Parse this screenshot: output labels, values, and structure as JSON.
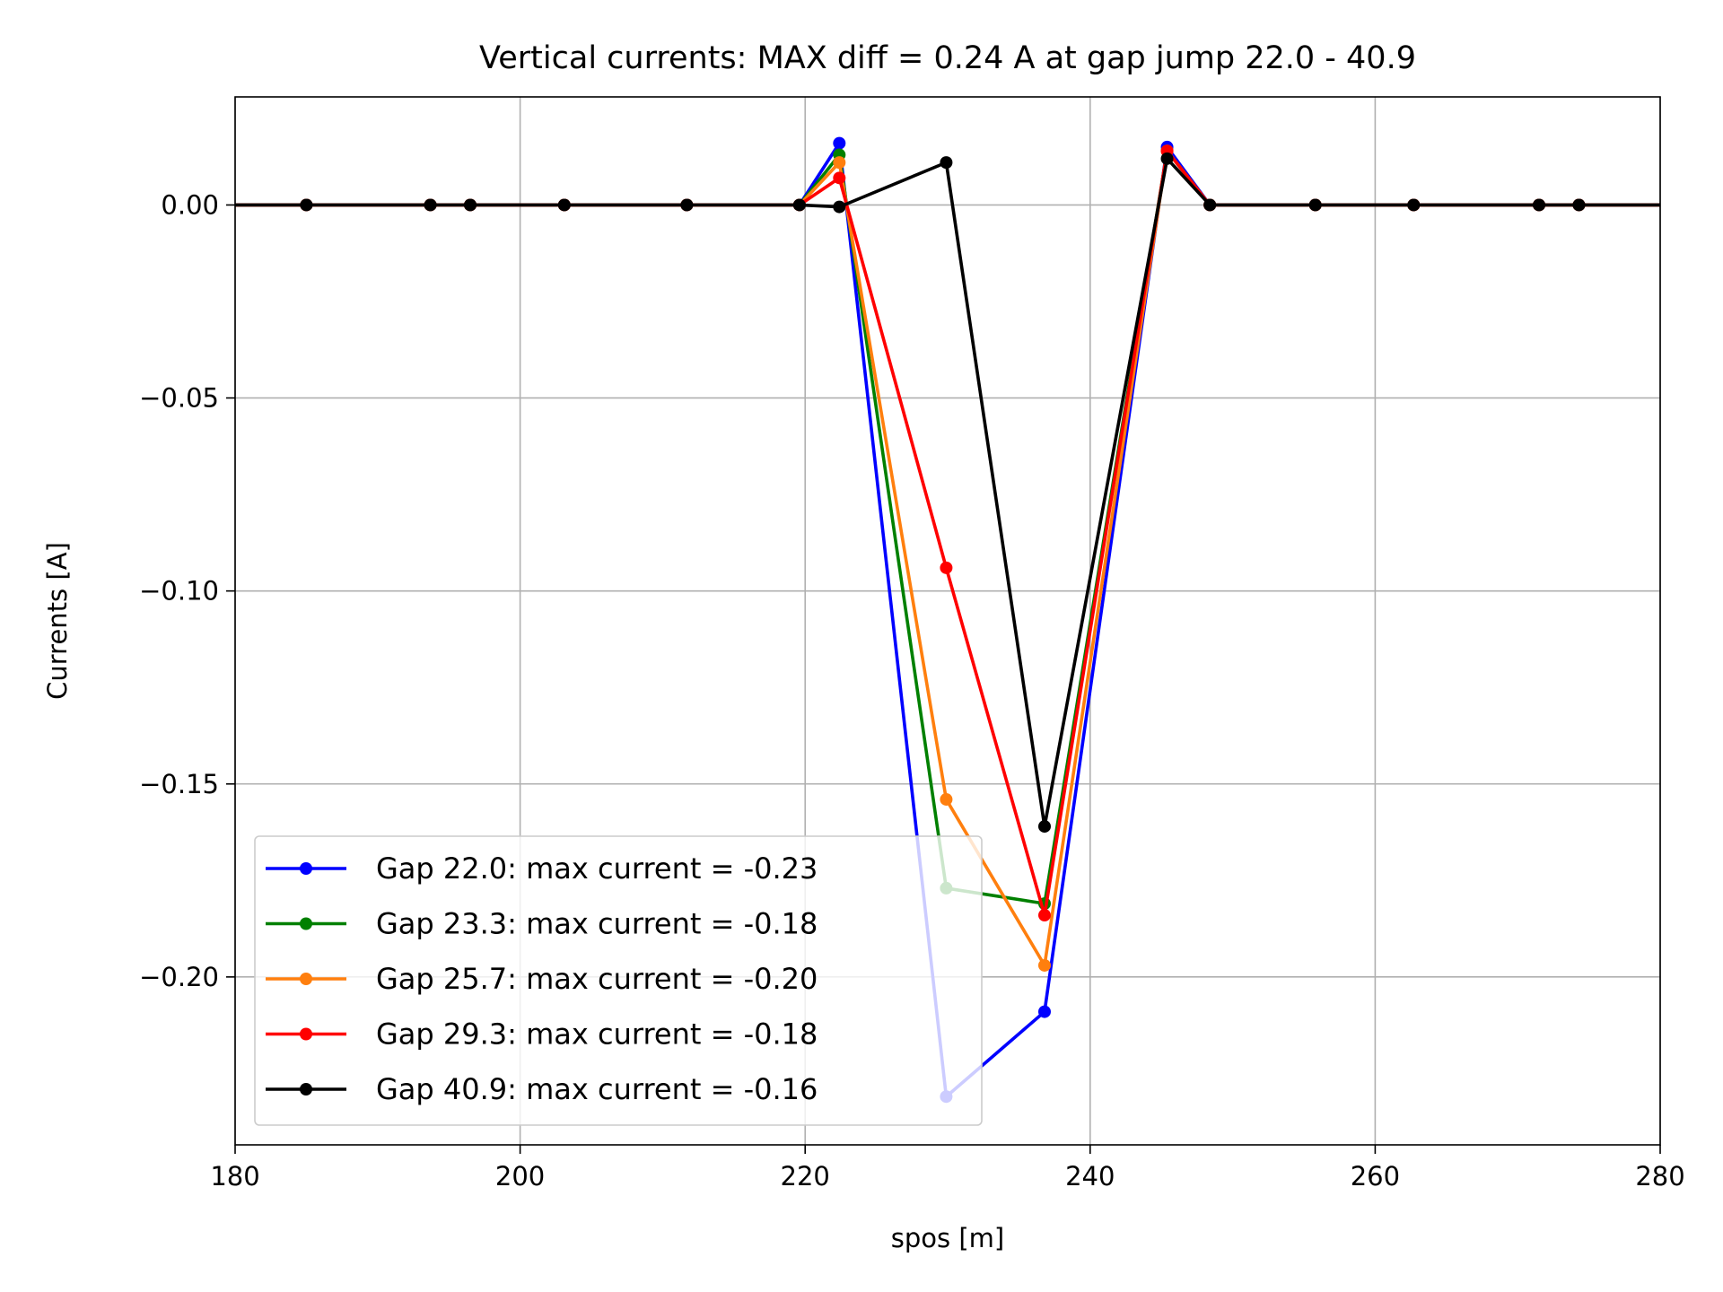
{
  "chart_data": {
    "type": "line",
    "title": "Vertical currents: MAX diff = 0.24 A at gap jump 22.0 - 40.9",
    "xlabel": "spos [m]",
    "ylabel": "Currents [A]",
    "xlim": [
      180,
      280
    ],
    "ylim": [
      -0.2435,
      0.028
    ],
    "xticks": [
      180,
      200,
      220,
      240,
      260,
      280
    ],
    "xtick_labels": [
      "180",
      "200",
      "220",
      "240",
      "260",
      "280"
    ],
    "yticks": [
      0.0,
      -0.05,
      -0.1,
      -0.15,
      -0.2
    ],
    "ytick_labels": [
      "0.00",
      "−0.05",
      "−0.10",
      "−0.15",
      "−0.20"
    ],
    "grid": true,
    "legend_position": "lower-left",
    "x": [
      175,
      185,
      193.7,
      196.5,
      203.1,
      211.7,
      219.6,
      222.4,
      229.9,
      236.8,
      245.4,
      248.4,
      255.8,
      262.7,
      271.5,
      274.3,
      285
    ],
    "series": [
      {
        "name": "Gap 22.0: max current = -0.23",
        "color": "#0000ff",
        "values": [
          0,
          0,
          0,
          0,
          0,
          0,
          0,
          0.016,
          -0.231,
          -0.209,
          0.015,
          0,
          0,
          0,
          0,
          0,
          0
        ]
      },
      {
        "name": "Gap 23.3: max current = -0.18",
        "color": "#008000",
        "values": [
          0,
          0,
          0,
          0,
          0,
          0,
          0,
          0.013,
          -0.177,
          -0.181,
          0.014,
          0,
          0,
          0,
          0,
          0,
          0
        ]
      },
      {
        "name": "Gap 25.7: max current = -0.20",
        "color": "#ff7f0e",
        "values": [
          0,
          0,
          0,
          0,
          0,
          0,
          0,
          0.011,
          -0.154,
          -0.197,
          0.014,
          0,
          0,
          0,
          0,
          0,
          0
        ]
      },
      {
        "name": "Gap 29.3: max current = -0.18",
        "color": "#ff0000",
        "values": [
          0,
          0,
          0,
          0,
          0,
          0,
          0,
          0.007,
          -0.094,
          -0.184,
          0.014,
          0,
          0,
          0,
          0,
          0,
          0
        ]
      },
      {
        "name": "Gap 40.9: max current = -0.16",
        "color": "#000000",
        "values": [
          0,
          0,
          0,
          0,
          0,
          0,
          0,
          -0.0005,
          0.011,
          -0.161,
          0.012,
          0,
          0,
          0,
          0,
          0,
          0
        ]
      }
    ]
  }
}
